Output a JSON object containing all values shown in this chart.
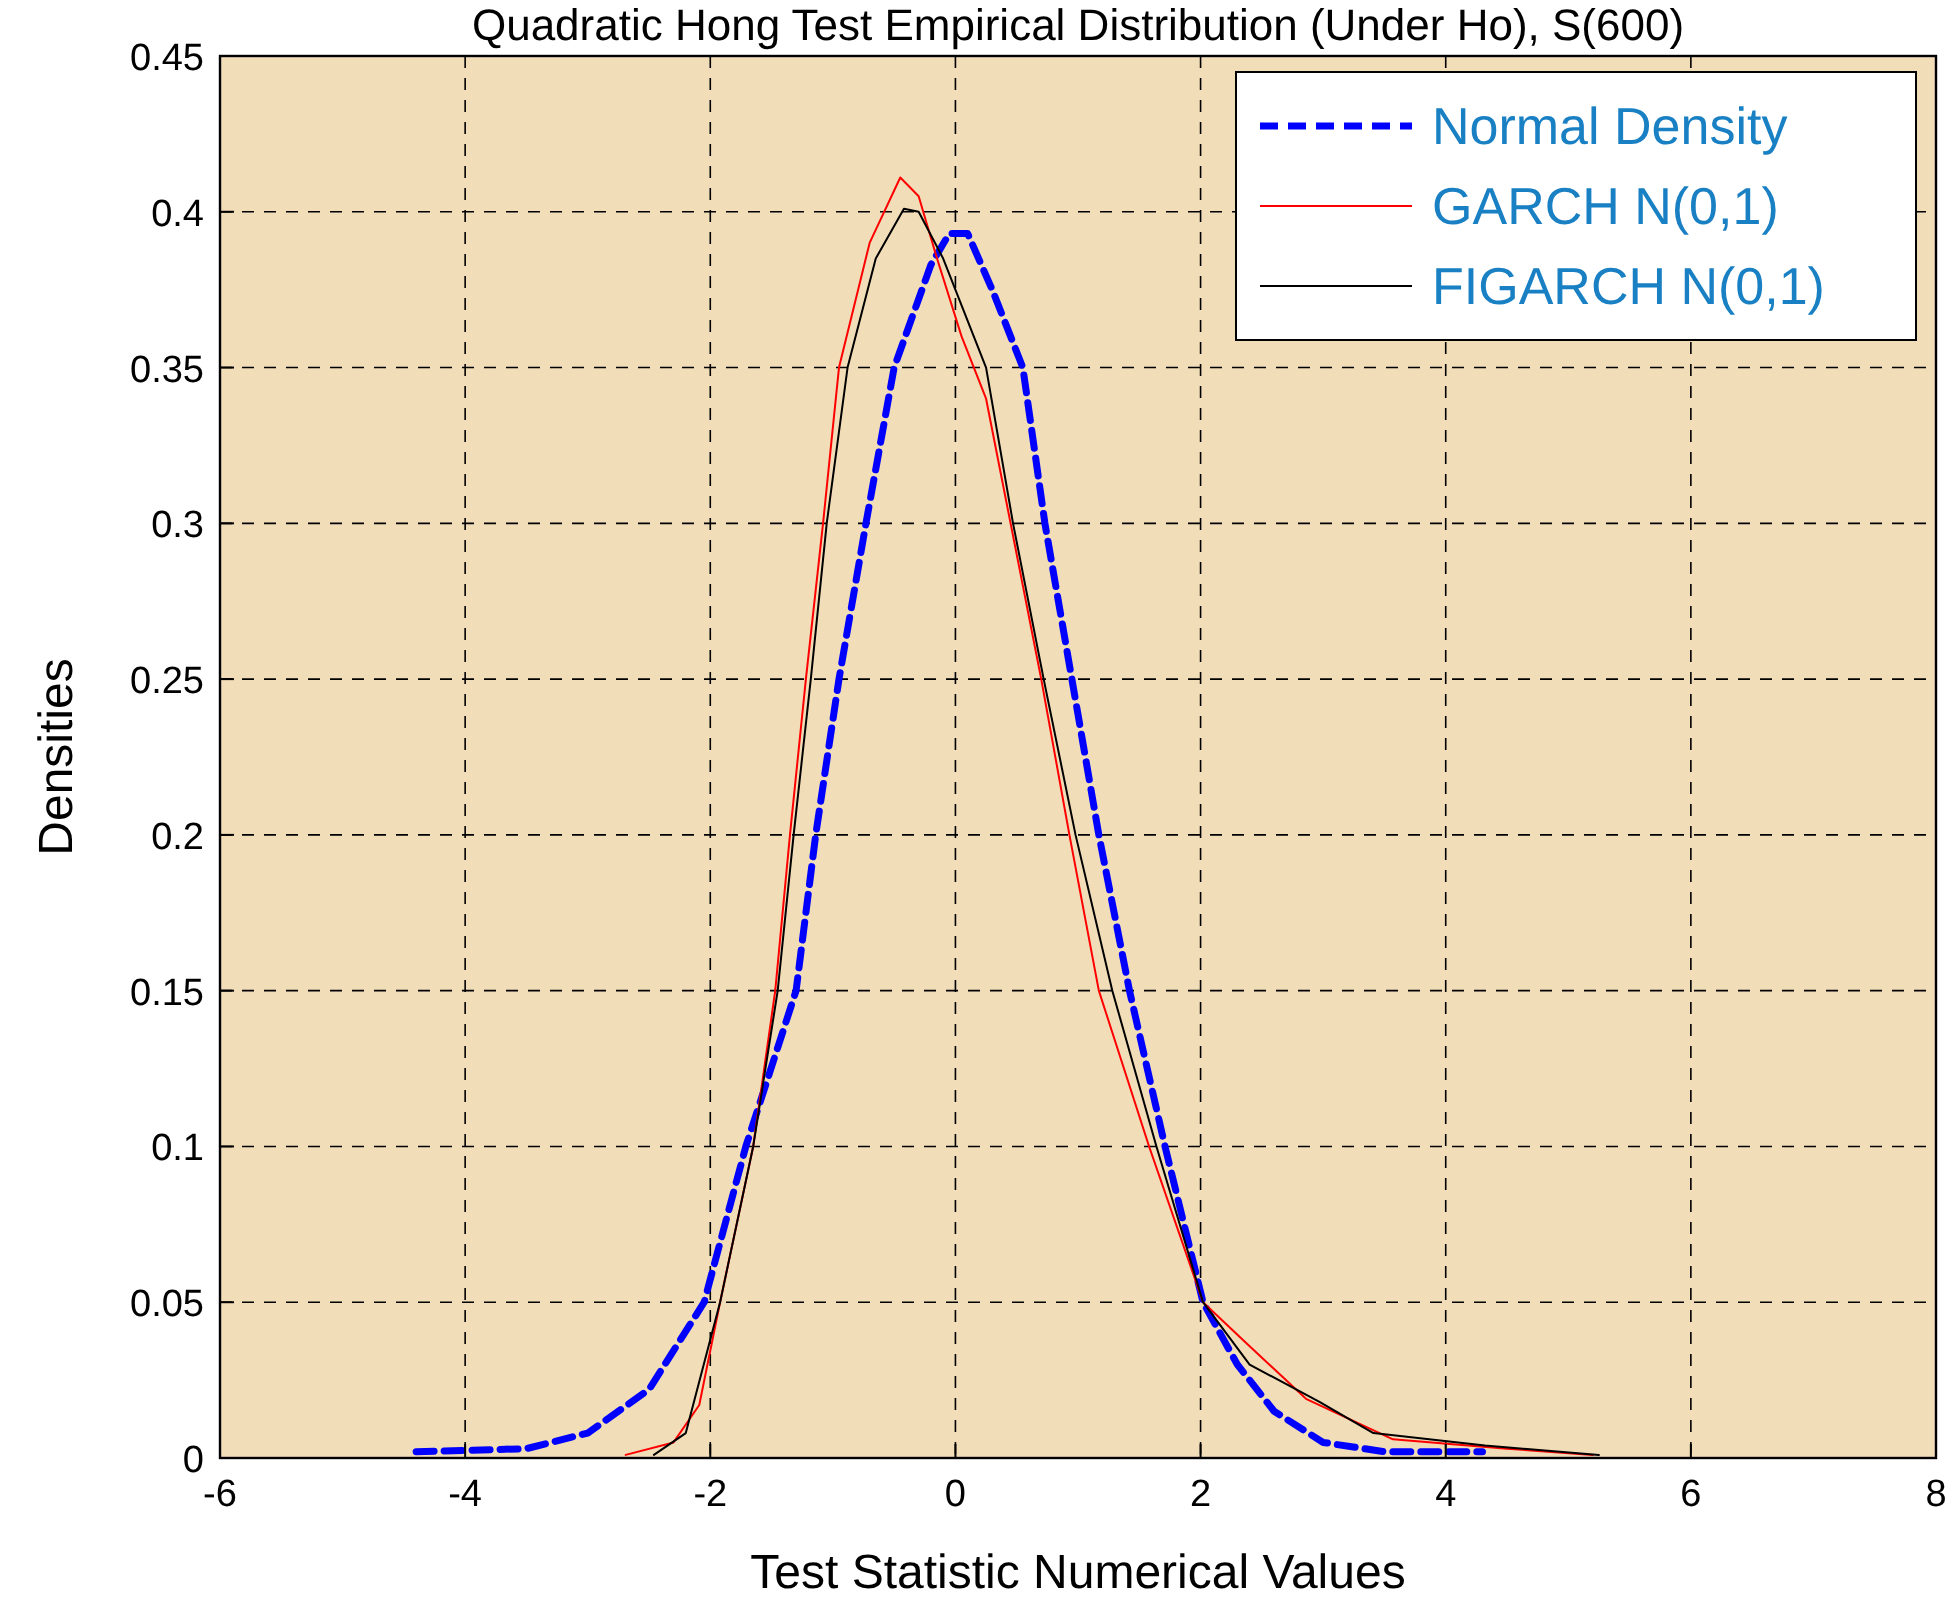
{
  "chart_data": {
    "type": "line",
    "title": "Quadratic Hong Test Empirical Distribution (Under Ho), S(600)",
    "xlabel": "Test Statistic Numerical Values",
    "ylabel": "Densities",
    "xlim": [
      -6,
      8
    ],
    "xticks": [
      -6,
      -4,
      -2,
      0,
      2,
      4,
      6,
      8
    ],
    "ylim": [
      0,
      0.45
    ],
    "yticks": [
      0,
      0.05,
      0.1,
      0.15,
      0.2,
      0.25,
      0.3,
      0.35,
      0.4,
      0.45
    ],
    "grid": true,
    "legend": "top right",
    "marker": "none",
    "series": [
      {
        "name": "Normal Density",
        "color": "#0000ff",
        "line_style": "dashed",
        "x": [
          -4.4,
          -3.5,
          -3,
          -2.5,
          -2.05,
          -1.71,
          -1.3,
          -1.14,
          -0.95,
          -0.73,
          -0.5,
          -0.2,
          -0.05,
          0.1,
          0.3,
          0.55,
          0.73,
          0.95,
          1.17,
          1.42,
          1.71,
          2.02,
          2.3,
          2.6,
          3,
          3.5,
          4.3
        ],
        "values": [
          0.002,
          0.003,
          0.008,
          0.022,
          0.05,
          0.1,
          0.15,
          0.2,
          0.25,
          0.3,
          0.35,
          0.383,
          0.393,
          0.393,
          0.375,
          0.35,
          0.3,
          0.25,
          0.2,
          0.15,
          0.1,
          0.05,
          0.03,
          0.015,
          0.005,
          0.002,
          0.002
        ]
      },
      {
        "name": "GARCH N(0,1)",
        "color": "#ff0000",
        "line_style": "solid",
        "x": [
          -2.69,
          -2.3,
          -2.09,
          -1.92,
          -1.65,
          -1.47,
          -1.35,
          -1.22,
          -1.08,
          -0.95,
          -0.7,
          -0.45,
          -0.3,
          -0.15,
          0.05,
          0.25,
          0.45,
          0.7,
          0.93,
          1.17,
          1.58,
          2.02,
          2.37,
          2.86,
          3.57,
          4.5,
          5.2
        ],
        "values": [
          0.001,
          0.005,
          0.017,
          0.05,
          0.1,
          0.15,
          0.2,
          0.25,
          0.3,
          0.35,
          0.39,
          0.411,
          0.405,
          0.385,
          0.36,
          0.34,
          0.3,
          0.25,
          0.2,
          0.15,
          0.1,
          0.05,
          0.037,
          0.019,
          0.006,
          0.003,
          0.001
        ]
      },
      {
        "name": "FIGARCH N(0,1)",
        "color": "#000000",
        "line_style": "solid",
        "x": [
          -2.46,
          -2.2,
          -1.92,
          -1.65,
          -1.45,
          -1.32,
          -1.18,
          -1.05,
          -0.88,
          -0.65,
          -0.42,
          -0.3,
          -0.1,
          0.25,
          0.47,
          0.72,
          0.98,
          1.28,
          1.64,
          2.02,
          2.4,
          2.97,
          3.41,
          4.32,
          5.25
        ],
        "values": [
          0.001,
          0.008,
          0.05,
          0.1,
          0.15,
          0.2,
          0.25,
          0.3,
          0.35,
          0.385,
          0.401,
          0.4,
          0.385,
          0.35,
          0.3,
          0.25,
          0.2,
          0.15,
          0.1,
          0.05,
          0.03,
          0.018,
          0.008,
          0.004,
          0.001
        ]
      }
    ]
  }
}
